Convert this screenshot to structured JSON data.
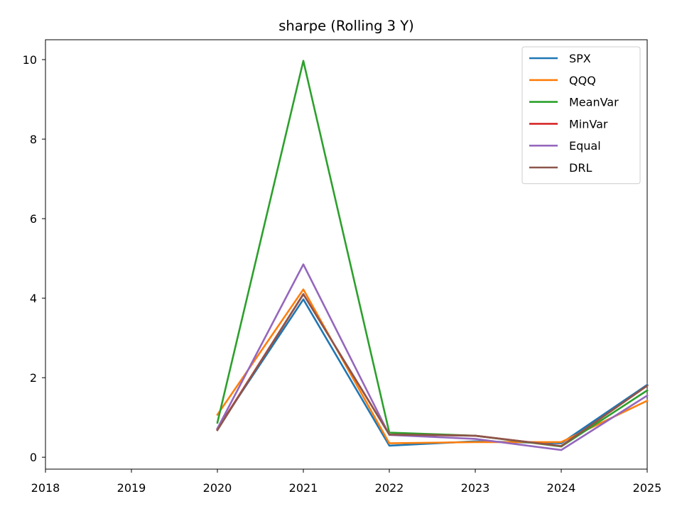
{
  "chart_data": {
    "type": "line",
    "title": "sharpe (Rolling 3 Y)",
    "xlabel": "",
    "ylabel": "",
    "xlim": [
      2018,
      2025
    ],
    "ylim": [
      -0.3,
      10.5
    ],
    "x_ticks": [
      "2018",
      "2019",
      "2020",
      "2021",
      "2022",
      "2023",
      "2024",
      "2025"
    ],
    "y_ticks": [
      "0",
      "2",
      "4",
      "6",
      "8",
      "10"
    ],
    "grid": false,
    "legend_position": "top-right",
    "x": [
      2020,
      2021,
      2022,
      2023,
      2024,
      2025
    ],
    "series": [
      {
        "name": "SPX",
        "color": "#1f77b4",
        "values": [
          0.72,
          3.97,
          0.29,
          0.4,
          0.35,
          1.82
        ]
      },
      {
        "name": "QQQ",
        "color": "#ff7f0e",
        "values": [
          1.07,
          4.22,
          0.35,
          0.38,
          0.38,
          1.42
        ]
      },
      {
        "name": "MeanVar",
        "color": "#2ca02c",
        "values": [
          0.87,
          9.97,
          0.62,
          0.54,
          0.27,
          1.68
        ]
      },
      {
        "name": "MinVar",
        "color": "#d62728",
        "values": [
          0.7,
          4.1,
          0.57,
          0.54,
          0.28,
          1.8
        ]
      },
      {
        "name": "Equal",
        "color": "#9467bd",
        "values": [
          0.72,
          4.85,
          0.56,
          0.46,
          0.18,
          1.55
        ]
      },
      {
        "name": "DRL",
        "color": "#8c564b",
        "values": [
          0.68,
          4.1,
          0.57,
          0.54,
          0.28,
          1.8
        ]
      }
    ]
  }
}
